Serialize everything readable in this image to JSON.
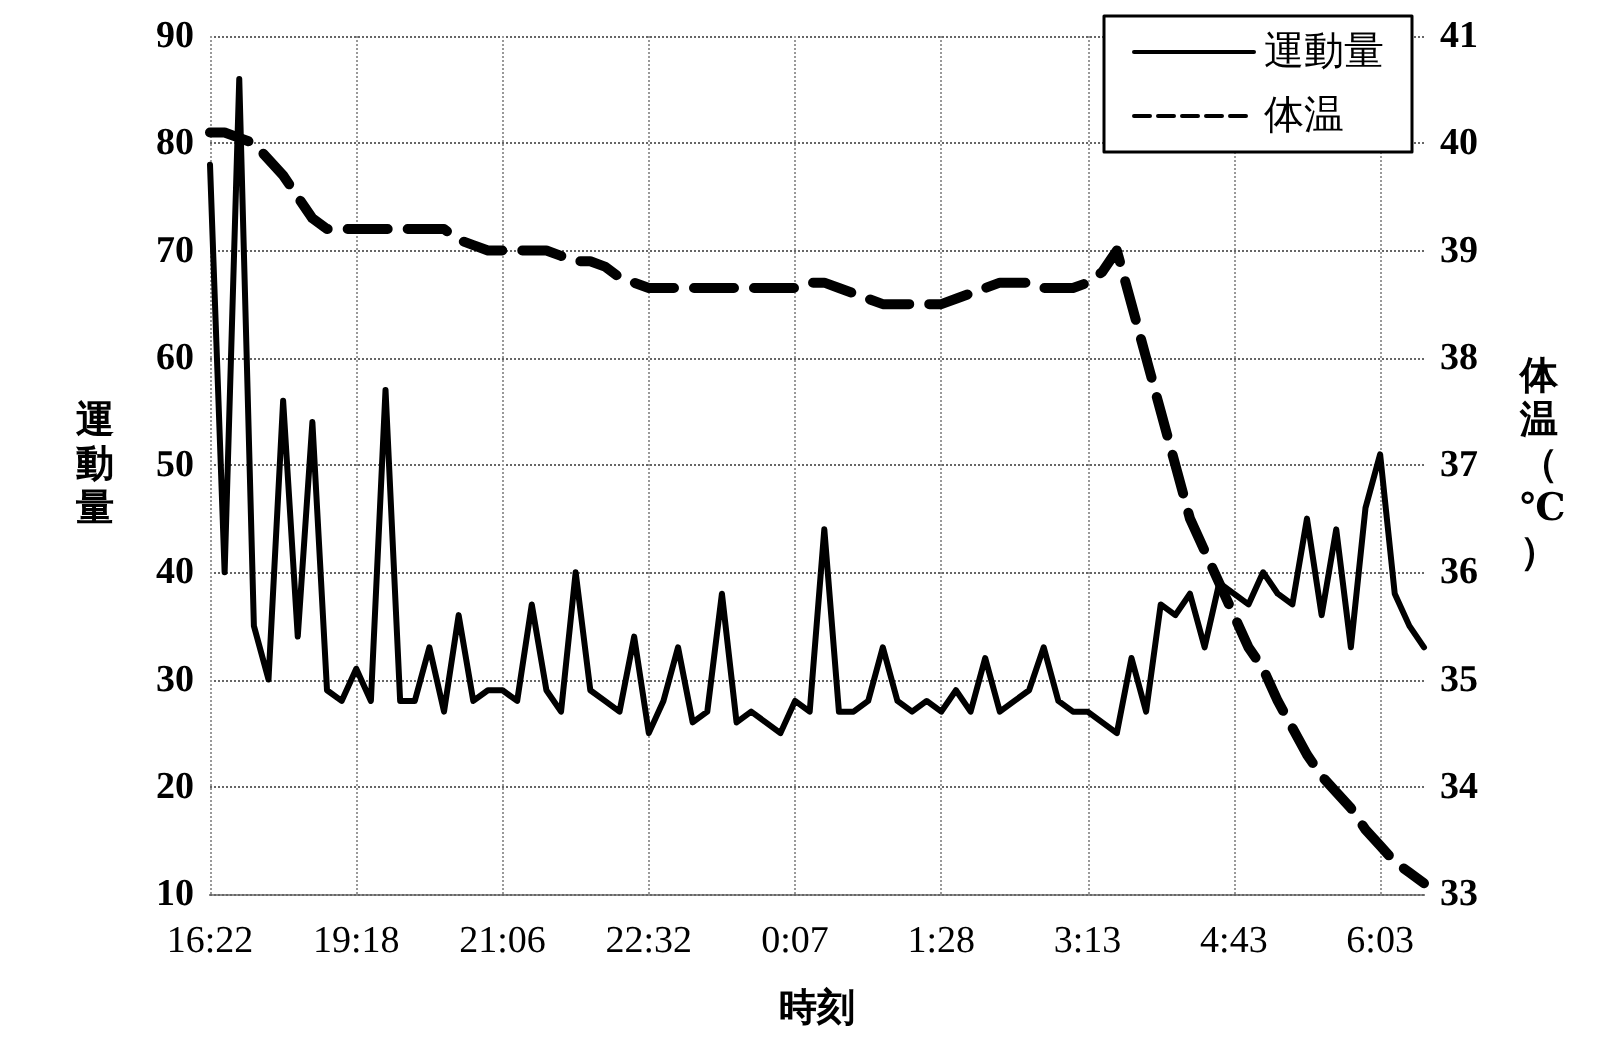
{
  "chart_data": {
    "type": "line",
    "xlabel": "時刻",
    "ylabel": "運動量",
    "y2label": "体温（℃）",
    "categories": [
      "16:22",
      null,
      null,
      null,
      null,
      null,
      null,
      null,
      null,
      null,
      "19:18",
      null,
      null,
      null,
      null,
      null,
      null,
      null,
      null,
      null,
      "21:06",
      null,
      null,
      null,
      null,
      null,
      null,
      null,
      null,
      null,
      "22:32",
      null,
      null,
      null,
      null,
      null,
      null,
      null,
      null,
      null,
      "0:07",
      null,
      null,
      null,
      null,
      null,
      null,
      null,
      null,
      null,
      "1:28",
      null,
      null,
      null,
      null,
      null,
      null,
      null,
      null,
      null,
      "3:13",
      null,
      null,
      null,
      null,
      null,
      null,
      null,
      null,
      null,
      "4:43",
      null,
      null,
      null,
      null,
      null,
      null,
      null,
      null,
      null,
      "6:03",
      null,
      null,
      null
    ],
    "series": [
      {
        "name": "運動量",
        "color": "#000000",
        "line_style": "solid",
        "values": [
          78,
          40,
          86,
          35,
          30,
          56,
          34,
          54,
          29,
          28,
          31,
          28,
          57,
          28,
          28,
          33,
          27,
          36,
          28,
          29,
          29,
          28,
          37,
          29,
          27,
          40,
          29,
          28,
          27,
          34,
          25,
          28,
          33,
          26,
          27,
          38,
          26,
          27,
          26,
          25,
          28,
          27,
          44,
          27,
          27,
          28,
          33,
          28,
          27,
          28,
          27,
          29,
          27,
          32,
          27,
          28,
          29,
          33,
          28,
          27,
          27,
          26,
          25,
          32,
          27,
          37,
          36,
          38,
          33,
          39,
          38,
          37,
          40,
          38,
          37,
          45,
          36,
          44,
          33,
          46,
          51,
          38,
          35,
          33
        ]
      },
      {
        "name": "体温",
        "color": "#000000",
        "line_style": "dashed",
        "axis": "y2",
        "values": [
          40.1,
          40.1,
          40.05,
          40.0,
          39.85,
          39.7,
          39.5,
          39.3,
          39.2,
          39.2,
          39.2,
          39.2,
          39.2,
          39.2,
          39.2,
          39.2,
          39.2,
          39.1,
          39.05,
          39.0,
          39.0,
          39.0,
          39.0,
          39.0,
          38.95,
          38.9,
          38.9,
          38.85,
          38.75,
          38.7,
          38.65,
          38.65,
          38.65,
          38.65,
          38.65,
          38.65,
          38.65,
          38.65,
          38.65,
          38.65,
          38.65,
          38.7,
          38.7,
          38.65,
          38.6,
          38.55,
          38.5,
          38.5,
          38.5,
          38.5,
          38.5,
          38.55,
          38.6,
          38.65,
          38.7,
          38.7,
          38.7,
          38.65,
          38.65,
          38.65,
          38.7,
          38.8,
          39.0,
          38.5,
          38.0,
          37.5,
          37.0,
          36.5,
          36.2,
          35.9,
          35.6,
          35.3,
          35.1,
          34.8,
          34.55,
          34.3,
          34.1,
          33.95,
          33.8,
          33.6,
          33.45,
          33.3,
          33.2,
          33.1
        ]
      }
    ],
    "ylim": [
      10,
      90
    ],
    "yticks": [
      10,
      20,
      30,
      40,
      50,
      60,
      70,
      80,
      90
    ],
    "y2lim": [
      33,
      41
    ],
    "y2ticks": [
      33,
      34,
      35,
      36,
      37,
      38,
      39,
      40,
      41
    ],
    "grid": true,
    "legend": "top right",
    "marker": "none"
  }
}
